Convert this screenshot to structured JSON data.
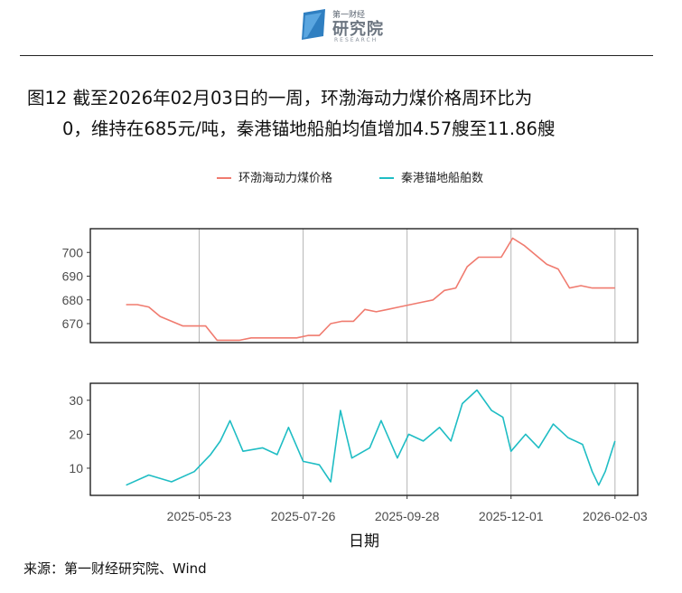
{
  "logo": {
    "small": "第一财经",
    "main": "研究院",
    "sub": "RESEARCH",
    "brand_color": "#2f7fc1"
  },
  "title": {
    "line1": "图12  截至2026年02月03日的一周，环渤海动力煤价格周环比为",
    "line2": "0，维持在685元/吨，秦港锚地船舶均值增加4.57艘至11.86艘"
  },
  "source": "来源：第一财经研究院、Wind",
  "chart_data": [
    {
      "type": "line",
      "series": [
        {
          "name": "环渤海动力煤价格",
          "color": "#f07b6f",
          "points": [
            [
              "2025-04-08",
              678
            ],
            [
              "2025-04-15",
              678
            ],
            [
              "2025-04-22",
              677
            ],
            [
              "2025-04-29",
              673
            ],
            [
              "2025-05-06",
              671
            ],
            [
              "2025-05-13",
              669
            ],
            [
              "2025-05-20",
              669
            ],
            [
              "2025-05-27",
              669
            ],
            [
              "2025-06-03",
              663
            ],
            [
              "2025-06-10",
              663
            ],
            [
              "2025-06-17",
              663
            ],
            [
              "2025-06-24",
              664
            ],
            [
              "2025-07-01",
              664
            ],
            [
              "2025-07-08",
              664
            ],
            [
              "2025-07-15",
              664
            ],
            [
              "2025-07-22",
              664
            ],
            [
              "2025-07-29",
              665
            ],
            [
              "2025-08-05",
              665
            ],
            [
              "2025-08-12",
              670
            ],
            [
              "2025-08-19",
              671
            ],
            [
              "2025-08-26",
              671
            ],
            [
              "2025-09-02",
              676
            ],
            [
              "2025-09-09",
              675
            ],
            [
              "2025-09-16",
              676
            ],
            [
              "2025-09-23",
              677
            ],
            [
              "2025-09-30",
              678
            ],
            [
              "2025-10-07",
              679
            ],
            [
              "2025-10-14",
              680
            ],
            [
              "2025-10-21",
              684
            ],
            [
              "2025-10-28",
              685
            ],
            [
              "2025-11-04",
              694
            ],
            [
              "2025-11-11",
              698
            ],
            [
              "2025-11-18",
              698
            ],
            [
              "2025-11-25",
              698
            ],
            [
              "2025-12-02",
              706
            ],
            [
              "2025-12-09",
              703
            ],
            [
              "2025-12-16",
              699
            ],
            [
              "2025-12-23",
              695
            ],
            [
              "2025-12-30",
              693
            ],
            [
              "2026-01-06",
              685
            ],
            [
              "2026-01-13",
              686
            ],
            [
              "2026-01-20",
              685
            ],
            [
              "2026-01-27",
              685
            ],
            [
              "2026-02-03",
              685
            ]
          ]
        }
      ],
      "ylim": [
        662,
        710
      ],
      "yticks": [
        670,
        680,
        690,
        700
      ],
      "grid": "vertical"
    },
    {
      "type": "line",
      "series": [
        {
          "name": "秦港锚地船舶数",
          "color": "#1fbdc4",
          "points": [
            [
              "2025-04-08",
              5
            ],
            [
              "2025-04-22",
              8
            ],
            [
              "2025-05-06",
              6
            ],
            [
              "2025-05-20",
              9
            ],
            [
              "2025-05-30",
              14
            ],
            [
              "2025-06-05",
              18
            ],
            [
              "2025-06-11",
              24
            ],
            [
              "2025-06-19",
              15
            ],
            [
              "2025-07-01",
              16
            ],
            [
              "2025-07-10",
              14
            ],
            [
              "2025-07-17",
              22
            ],
            [
              "2025-07-26",
              12
            ],
            [
              "2025-08-05",
              11
            ],
            [
              "2025-08-12",
              6
            ],
            [
              "2025-08-18",
              27
            ],
            [
              "2025-08-25",
              13
            ],
            [
              "2025-09-05",
              16
            ],
            [
              "2025-09-12",
              24
            ],
            [
              "2025-09-22",
              13
            ],
            [
              "2025-09-29",
              20
            ],
            [
              "2025-10-08",
              18
            ],
            [
              "2025-10-18",
              22
            ],
            [
              "2025-10-25",
              18
            ],
            [
              "2025-11-01",
              29
            ],
            [
              "2025-11-10",
              33
            ],
            [
              "2025-11-19",
              27
            ],
            [
              "2025-11-26",
              25
            ],
            [
              "2025-12-01",
              15
            ],
            [
              "2025-12-10",
              20
            ],
            [
              "2025-12-18",
              16
            ],
            [
              "2025-12-27",
              23
            ],
            [
              "2026-01-05",
              19
            ],
            [
              "2026-01-14",
              17
            ],
            [
              "2026-01-20",
              9
            ],
            [
              "2026-01-24",
              5
            ],
            [
              "2026-01-28",
              9
            ],
            [
              "2026-02-03",
              18
            ]
          ]
        }
      ],
      "ylim": [
        2,
        35
      ],
      "yticks": [
        10,
        20,
        30
      ],
      "grid": "vertical"
    }
  ],
  "x_axis": {
    "title": "日期",
    "tick_dates": [
      "2025-05-23",
      "2025-07-26",
      "2025-09-28",
      "2025-12-01",
      "2026-02-03"
    ],
    "range": [
      "2025-03-17",
      "2026-02-17"
    ]
  }
}
